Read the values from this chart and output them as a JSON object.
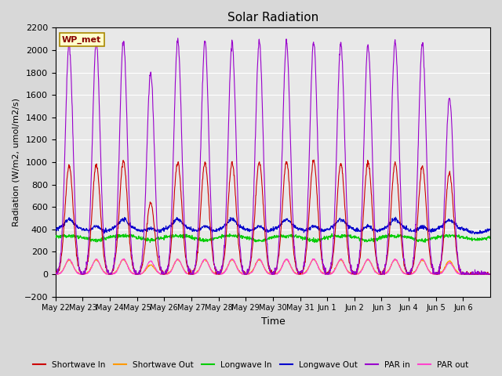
{
  "title": "Solar Radiation",
  "ylabel": "Radiation (W/m2, umol/m2/s)",
  "xlabel": "Time",
  "ylim": [
    -200,
    2200
  ],
  "yticks": [
    -200,
    0,
    200,
    400,
    600,
    800,
    1000,
    1200,
    1400,
    1600,
    1800,
    2000,
    2200
  ],
  "bg_color": "#e8e8e8",
  "station_label": "WP_met",
  "x_tick_labels": [
    "May 22",
    "May 23",
    "May 24",
    "May 25",
    "May 26",
    "May 27",
    "May 28",
    "May 29",
    "May 30",
    "May 31",
    "Jun 1",
    "Jun 2",
    "Jun 3",
    "Jun 4",
    "Jun 5",
    "Jun 6"
  ],
  "num_days": 16,
  "colors": {
    "shortwave_in": "#cc0000",
    "shortwave_out": "#ff9900",
    "longwave_in": "#00cc00",
    "longwave_out": "#0000cc",
    "par_in": "#9900cc",
    "par_out": "#ff44cc"
  },
  "legend": [
    {
      "label": "Shortwave In",
      "color": "#cc0000"
    },
    {
      "label": "Shortwave Out",
      "color": "#ff9900"
    },
    {
      "label": "Longwave In",
      "color": "#00cc00"
    },
    {
      "label": "Longwave Out",
      "color": "#0000cc"
    },
    {
      "label": "PAR in",
      "color": "#9900cc"
    },
    {
      "label": "PAR out",
      "color": "#ff44cc"
    }
  ]
}
